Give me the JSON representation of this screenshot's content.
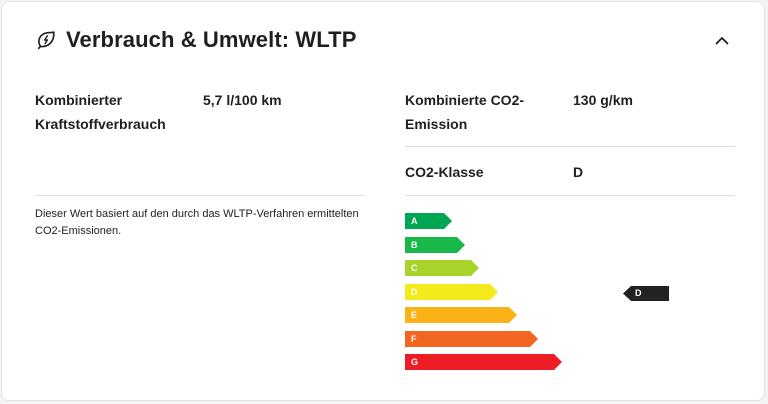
{
  "header": {
    "title": "Verbrauch & Umwelt: WLTP"
  },
  "fuel": {
    "label": "Kombinierter Kraftstoffverbrauch",
    "value": "5,7 l/100 km"
  },
  "co2": {
    "label": "Kombinierte CO2-Emission",
    "value": "130 g/km"
  },
  "co2_class": {
    "label": "CO2-Klasse",
    "value": "D"
  },
  "note": "Dieser Wert basiert auf den durch das WLTP-Verfahren ermittelten CO2-Emissionen.",
  "efficiency_scale": {
    "classes": [
      {
        "letter": "A",
        "color": "#00a651"
      },
      {
        "letter": "B",
        "color": "#18b84a"
      },
      {
        "letter": "C",
        "color": "#a8d32b"
      },
      {
        "letter": "D",
        "color": "#f2ea19"
      },
      {
        "letter": "E",
        "color": "#fbb217"
      },
      {
        "letter": "F",
        "color": "#f26522"
      },
      {
        "letter": "G",
        "color": "#ee1c25"
      }
    ],
    "current": "D"
  },
  "colors": {
    "text": "#1f1f1f",
    "divider": "#dcdcdc",
    "marker": "#222222"
  }
}
